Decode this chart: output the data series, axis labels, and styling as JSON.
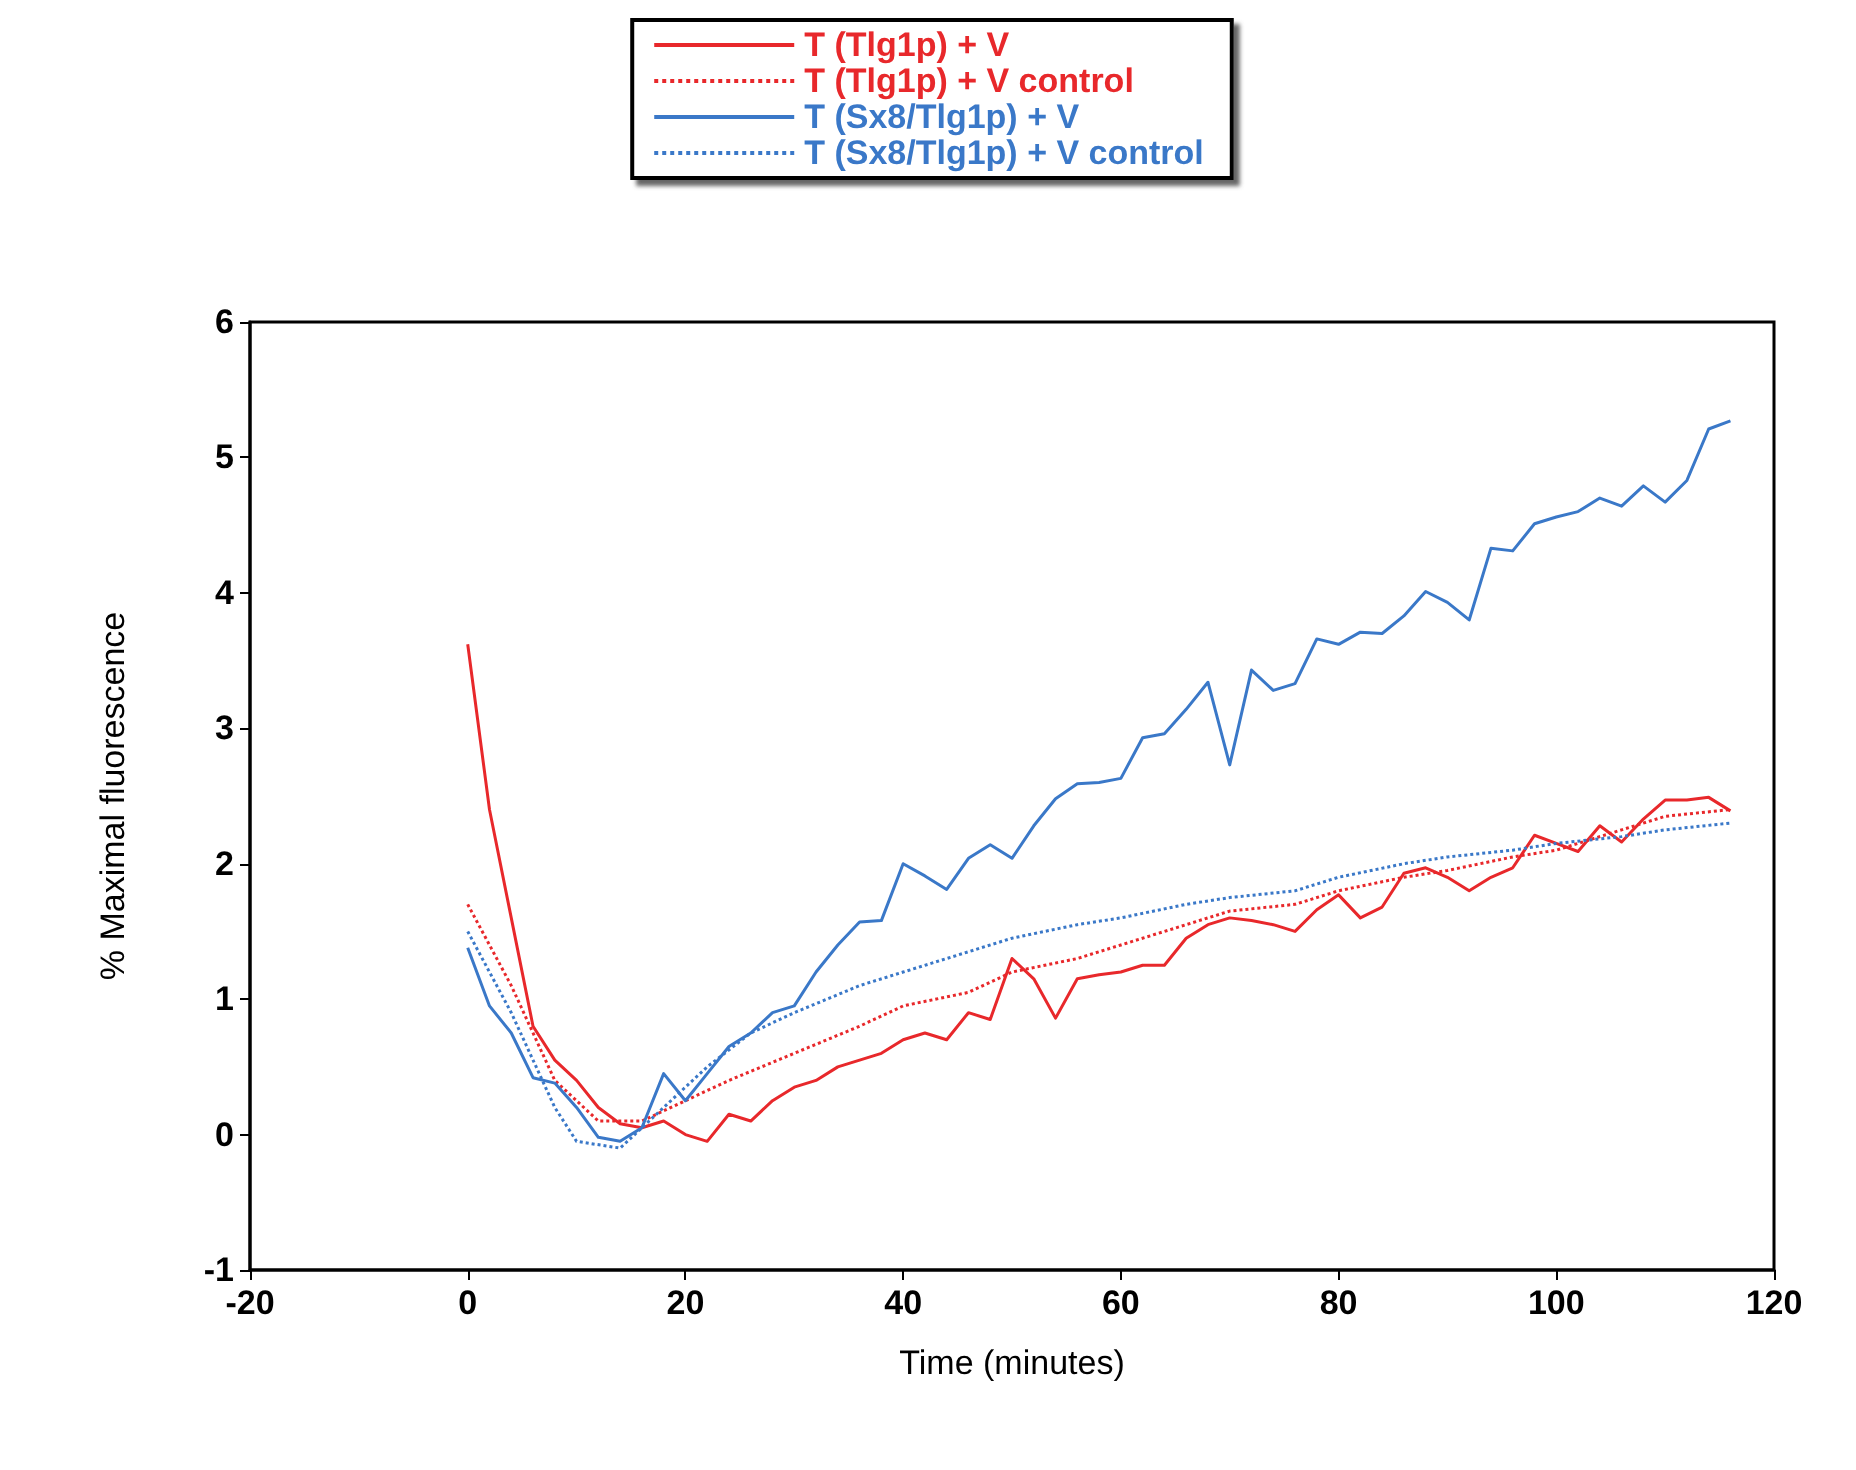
{
  "chart_data": {
    "type": "line",
    "xlabel": "Time (minutes)",
    "ylabel": "% Maximal fluorescence",
    "xlim": [
      -20,
      120
    ],
    "xticks": [
      -20,
      0,
      20,
      40,
      60,
      80,
      100,
      120
    ],
    "ylim": [
      -1,
      6
    ],
    "yticks": [
      -1,
      0,
      1,
      2,
      3,
      4,
      5,
      6
    ],
    "legend": "top",
    "series": [
      {
        "name": "T (Tlg1p) + V",
        "color": "#e8282b",
        "line_style": "solid",
        "x": [
          0,
          2,
          4,
          6,
          8,
          10,
          12,
          14,
          16,
          18,
          20,
          22,
          24,
          26,
          28,
          30,
          32,
          34,
          36,
          38,
          40,
          42,
          44,
          46,
          48,
          50,
          52,
          54,
          56,
          58,
          60,
          62,
          64,
          66,
          68,
          70,
          72,
          74,
          76,
          78,
          80,
          82,
          84,
          86,
          88,
          90,
          92,
          94,
          96,
          98,
          100,
          102,
          104,
          106,
          108,
          110,
          112,
          114,
          116
        ],
        "values": [
          3.62,
          2.4,
          1.6,
          0.8,
          0.55,
          0.4,
          0.2,
          0.08,
          0.05,
          0.1,
          0.0,
          -0.05,
          0.15,
          0.1,
          0.25,
          0.35,
          0.4,
          0.5,
          0.55,
          0.6,
          0.7,
          0.75,
          0.7,
          0.9,
          0.85,
          1.3,
          1.15,
          0.86,
          1.15,
          1.18,
          1.2,
          1.25,
          1.25,
          1.45,
          1.55,
          1.6,
          1.58,
          1.55,
          1.5,
          1.66,
          1.77,
          1.6,
          1.68,
          1.93,
          1.97,
          1.9,
          1.8,
          1.9,
          1.97,
          2.21,
          2.15,
          2.09,
          2.28,
          2.16,
          2.33,
          2.47,
          2.47,
          2.49,
          2.39
        ]
      },
      {
        "name": "T (Tlg1p) + V control",
        "color": "#e8282b",
        "line_style": "dotted",
        "x": [
          0,
          4,
          8,
          12,
          16,
          20,
          24,
          30,
          36,
          40,
          46,
          50,
          56,
          60,
          66,
          70,
          76,
          80,
          86,
          90,
          96,
          100,
          106,
          110,
          116
        ],
        "values": [
          1.7,
          1.1,
          0.4,
          0.1,
          0.1,
          0.25,
          0.4,
          0.6,
          0.8,
          0.95,
          1.05,
          1.2,
          1.3,
          1.4,
          1.55,
          1.65,
          1.7,
          1.8,
          1.9,
          1.95,
          2.05,
          2.1,
          2.25,
          2.35,
          2.4
        ]
      },
      {
        "name": "T (Sx8/Tlg1p) + V",
        "color": "#3a78c8",
        "line_style": "solid",
        "x": [
          0,
          2,
          4,
          6,
          8,
          10,
          12,
          14,
          16,
          18,
          20,
          22,
          24,
          26,
          28,
          30,
          32,
          34,
          36,
          38,
          40,
          42,
          44,
          46,
          48,
          50,
          52,
          54,
          56,
          58,
          60,
          62,
          64,
          66,
          68,
          70,
          72,
          74,
          76,
          78,
          80,
          82,
          84,
          86,
          88,
          90,
          92,
          94,
          96,
          98,
          100,
          102,
          104,
          106,
          108,
          110,
          112,
          114,
          116
        ],
        "values": [
          1.38,
          0.95,
          0.75,
          0.42,
          0.38,
          0.2,
          -0.02,
          -0.05,
          0.05,
          0.45,
          0.25,
          0.45,
          0.65,
          0.75,
          0.9,
          0.95,
          1.2,
          1.4,
          1.57,
          1.58,
          2.0,
          1.91,
          1.81,
          2.04,
          2.14,
          2.04,
          2.28,
          2.48,
          2.59,
          2.6,
          2.63,
          2.93,
          2.96,
          3.14,
          3.34,
          2.73,
          3.43,
          3.28,
          3.33,
          3.66,
          3.62,
          3.71,
          3.7,
          3.83,
          4.01,
          3.93,
          3.8,
          4.33,
          4.31,
          4.51,
          4.56,
          4.6,
          4.7,
          4.64,
          4.79,
          4.67,
          4.83,
          5.21,
          5.27
        ]
      },
      {
        "name": "T (Sx8/Tlg1p) + V control",
        "color": "#3a78c8",
        "line_style": "dotted",
        "x": [
          0,
          4,
          8,
          10,
          14,
          18,
          22,
          26,
          30,
          36,
          40,
          46,
          50,
          56,
          60,
          66,
          70,
          76,
          80,
          86,
          90,
          96,
          100,
          106,
          110,
          116
        ],
        "values": [
          1.5,
          0.9,
          0.2,
          -0.05,
          -0.1,
          0.2,
          0.5,
          0.75,
          0.9,
          1.1,
          1.2,
          1.35,
          1.45,
          1.55,
          1.6,
          1.7,
          1.75,
          1.8,
          1.9,
          2.0,
          2.05,
          2.1,
          2.15,
          2.2,
          2.25,
          2.3
        ]
      }
    ]
  }
}
